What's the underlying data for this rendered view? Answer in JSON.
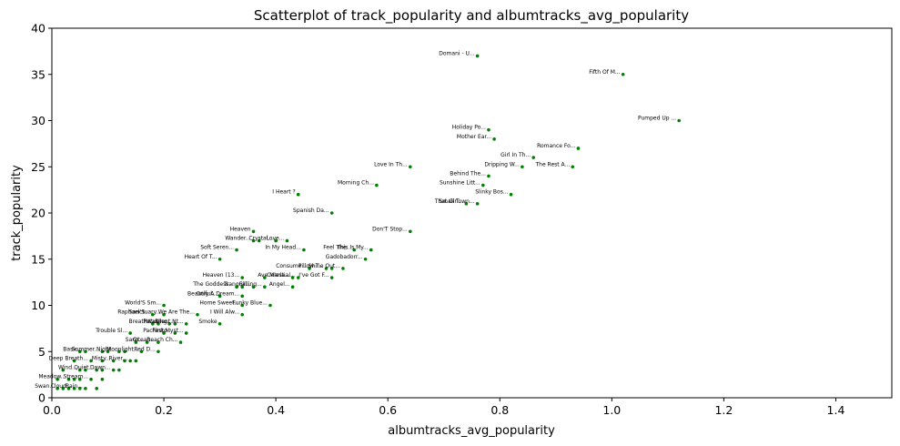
{
  "chart_data": {
    "type": "scatter",
    "title": "Scatterplot of track_popularity and albumtracks_avg_popularity",
    "xlabel": "albumtracks_avg_popularity",
    "ylabel": "track_popularity",
    "xlim": [
      0,
      1.5
    ],
    "ylim": [
      0,
      40
    ],
    "x_ticks": [
      "0.0",
      "0.2",
      "0.4",
      "0.6",
      "0.8",
      "1.0",
      "1.2",
      "1.4"
    ],
    "y_ticks": [
      "0",
      "5",
      "10",
      "15",
      "20",
      "25",
      "30",
      "35",
      "40"
    ],
    "x_tick_values": [
      0,
      0.2,
      0.4,
      0.6,
      0.8,
      1.0,
      1.2,
      1.4
    ],
    "y_tick_values": [
      0,
      5,
      10,
      15,
      20,
      25,
      30,
      35,
      40
    ],
    "grid": false,
    "marker_color": "#008000",
    "labeled_points": [
      {
        "label": "Domani - U...",
        "x": 0.76,
        "y": 37
      },
      {
        "label": "Fifth Of M...",
        "x": 1.02,
        "y": 35
      },
      {
        "label": "Pumped Up ...",
        "x": 1.12,
        "y": 30
      },
      {
        "label": "Holiday Po...",
        "x": 0.78,
        "y": 29
      },
      {
        "label": "Mother Ear...",
        "x": 0.79,
        "y": 28
      },
      {
        "label": "Romance Fo...",
        "x": 0.94,
        "y": 27
      },
      {
        "label": "Girl In Th...",
        "x": 0.86,
        "y": 26
      },
      {
        "label": "Love In Th...",
        "x": 0.64,
        "y": 25
      },
      {
        "label": "Dripping W...",
        "x": 0.84,
        "y": 25
      },
      {
        "label": "The Rest A...",
        "x": 0.93,
        "y": 25
      },
      {
        "label": "Behind The...",
        "x": 0.78,
        "y": 24
      },
      {
        "label": "Morning Ch...",
        "x": 0.58,
        "y": 23
      },
      {
        "label": "Sunshine Litt...",
        "x": 0.77,
        "y": 23
      },
      {
        "label": "I Heart ?",
        "x": 0.44,
        "y": 22
      },
      {
        "label": "Slinky Bos...",
        "x": 0.82,
        "y": 22
      },
      {
        "label": "That Girl...",
        "x": 0.74,
        "y": 21
      },
      {
        "label": "Small Town...",
        "x": 0.76,
        "y": 21
      },
      {
        "label": "Spanish Da...",
        "x": 0.5,
        "y": 20
      },
      {
        "label": "Heaven",
        "x": 0.36,
        "y": 18
      },
      {
        "label": "Don'T Stop...",
        "x": 0.64,
        "y": 18
      },
      {
        "label": "Wander...",
        "x": 0.36,
        "y": 17
      },
      {
        "label": "Crystal...",
        "x": 0.4,
        "y": 17
      },
      {
        "label": "Love...",
        "x": 0.42,
        "y": 17
      },
      {
        "label": "Soft Seren...",
        "x": 0.33,
        "y": 16
      },
      {
        "label": "In My Head...",
        "x": 0.45,
        "y": 16
      },
      {
        "label": "Feel The...",
        "x": 0.54,
        "y": 16
      },
      {
        "label": "This Is My...",
        "x": 0.57,
        "y": 16
      },
      {
        "label": "Heart Of T...",
        "x": 0.3,
        "y": 15
      },
      {
        "label": "Gadobadorr...",
        "x": 0.56,
        "y": 15
      },
      {
        "label": "Consume...",
        "x": 0.46,
        "y": 14
      },
      {
        "label": "Pillow T...",
        "x": 0.49,
        "y": 14
      },
      {
        "label": "Shine Out...",
        "x": 0.52,
        "y": 14
      },
      {
        "label": "Heaven (13...",
        "x": 0.34,
        "y": 13
      },
      {
        "label": "Ave Maria...",
        "x": 0.43,
        "y": 13
      },
      {
        "label": "Celestial...",
        "x": 0.44,
        "y": 13
      },
      {
        "label": "I've Got F...",
        "x": 0.5,
        "y": 13
      },
      {
        "label": "The Goddess...",
        "x": 0.33,
        "y": 12
      },
      {
        "label": "Tranquil...",
        "x": 0.36,
        "y": 12
      },
      {
        "label": "Falling...",
        "x": 0.38,
        "y": 12
      },
      {
        "label": "Angel...",
        "x": 0.43,
        "y": 12
      },
      {
        "label": "Beautiful...",
        "x": 0.3,
        "y": 11
      },
      {
        "label": "Only A Dream...",
        "x": 0.34,
        "y": 11
      },
      {
        "label": "World'S Sm...",
        "x": 0.2,
        "y": 10
      },
      {
        "label": "Home Sweet...",
        "x": 0.34,
        "y": 10
      },
      {
        "label": "Funky Blue...",
        "x": 0.39,
        "y": 10
      },
      {
        "label": "Raphael'S...",
        "x": 0.18,
        "y": 9
      },
      {
        "label": "Sanctuary...",
        "x": 0.2,
        "y": 9
      },
      {
        "label": "We Are The...",
        "x": 0.26,
        "y": 9
      },
      {
        "label": "I Will Alw...",
        "x": 0.34,
        "y": 9
      },
      {
        "label": "Breathe...",
        "x": 0.19,
        "y": 8
      },
      {
        "label": "Return...",
        "x": 0.21,
        "y": 8
      },
      {
        "label": "Waiting...",
        "x": 0.22,
        "y": 8
      },
      {
        "label": "Silent Nt...",
        "x": 0.24,
        "y": 8
      },
      {
        "label": "Smoke",
        "x": 0.3,
        "y": 8
      },
      {
        "label": "Trouble Sl...",
        "x": 0.14,
        "y": 7
      },
      {
        "label": "Pachinko...",
        "x": 0.22,
        "y": 7
      },
      {
        "label": "First Myst...",
        "x": 0.24,
        "y": 7
      },
      {
        "label": "Sand...",
        "x": 0.17,
        "y": 6
      },
      {
        "label": "Ocean...",
        "x": 0.19,
        "y": 6
      },
      {
        "label": "Beach Ch...",
        "x": 0.23,
        "y": 6
      },
      {
        "label": "Basic...",
        "x": 0.06,
        "y": 5
      },
      {
        "label": "Summer...",
        "x": 0.09,
        "y": 5
      },
      {
        "label": "Night...",
        "x": 0.12,
        "y": 5
      },
      {
        "label": "Moonlight...",
        "x": 0.16,
        "y": 5
      },
      {
        "label": "Red D...",
        "x": 0.19,
        "y": 5
      },
      {
        "label": "Deep Breath...",
        "x": 0.07,
        "y": 4
      },
      {
        "label": "Misty...",
        "x": 0.11,
        "y": 4
      },
      {
        "label": "River...",
        "x": 0.14,
        "y": 4
      },
      {
        "label": "Wind...",
        "x": 0.05,
        "y": 3
      },
      {
        "label": "Quiet...",
        "x": 0.08,
        "y": 3
      },
      {
        "label": "Dawn...",
        "x": 0.11,
        "y": 3
      },
      {
        "label": "Meadow...",
        "x": 0.03,
        "y": 2
      },
      {
        "label": "Stream...",
        "x": 0.07,
        "y": 2
      },
      {
        "label": "Swan...",
        "x": 0.01,
        "y": 1
      },
      {
        "label": "Cloud...",
        "x": 0.04,
        "y": 1
      },
      {
        "label": "Rain...",
        "x": 0.06,
        "y": 1
      }
    ],
    "unlabeled_points": [
      {
        "x": 0.02,
        "y": 1
      },
      {
        "x": 0.03,
        "y": 1
      },
      {
        "x": 0.05,
        "y": 1
      },
      {
        "x": 0.08,
        "y": 1
      },
      {
        "x": 0.01,
        "y": 2
      },
      {
        "x": 0.04,
        "y": 2
      },
      {
        "x": 0.05,
        "y": 2
      },
      {
        "x": 0.09,
        "y": 2
      },
      {
        "x": 0.02,
        "y": 3
      },
      {
        "x": 0.06,
        "y": 3
      },
      {
        "x": 0.09,
        "y": 3
      },
      {
        "x": 0.12,
        "y": 3
      },
      {
        "x": 0.04,
        "y": 4
      },
      {
        "x": 0.09,
        "y": 4
      },
      {
        "x": 0.13,
        "y": 4
      },
      {
        "x": 0.15,
        "y": 4
      },
      {
        "x": 0.05,
        "y": 5
      },
      {
        "x": 0.1,
        "y": 5
      },
      {
        "x": 0.13,
        "y": 5
      },
      {
        "x": 0.15,
        "y": 6
      },
      {
        "x": 0.2,
        "y": 7
      },
      {
        "x": 0.18,
        "y": 8
      },
      {
        "x": 0.34,
        "y": 12
      },
      {
        "x": 0.38,
        "y": 13
      },
      {
        "x": 0.37,
        "y": 17
      },
      {
        "x": 0.5,
        "y": 14
      }
    ]
  }
}
